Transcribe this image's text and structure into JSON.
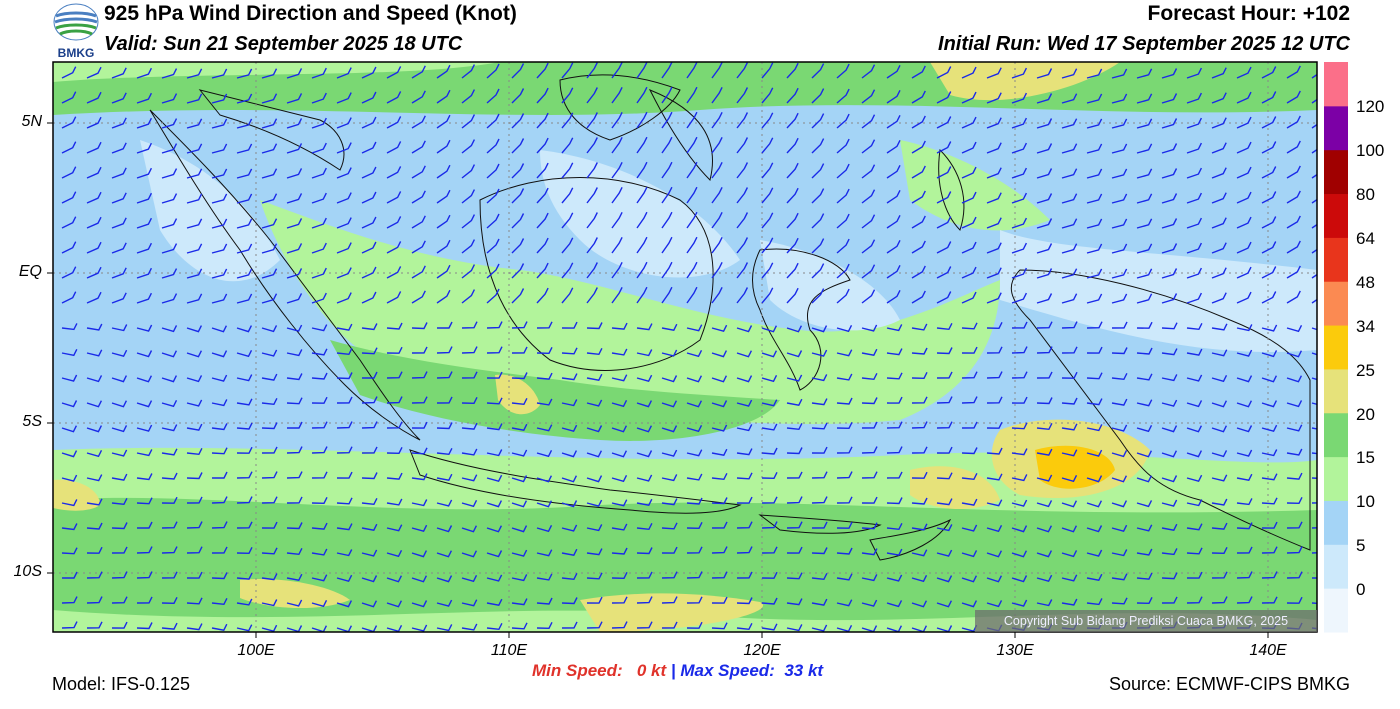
{
  "header": {
    "title": "925 hPa Wind Direction and Speed (Knot)",
    "valid": "Valid: Sun 21 September 2025 18 UTC",
    "forecast_hour": "Forecast Hour: +102",
    "initial_run": "Initial Run: Wed 17 September 2025 12 UTC"
  },
  "logo": {
    "text": "BMKG"
  },
  "map": {
    "lat_labels": [
      "5N",
      "EQ",
      "5S",
      "10S"
    ],
    "lon_labels": [
      "100E",
      "110E",
      "120E",
      "130E",
      "140E"
    ],
    "copyright": "Copyright Sub Bidang Prediksi Cuaca BMKG, 2025"
  },
  "colorbar": {
    "labels": [
      "0",
      "5",
      "10",
      "15",
      "20",
      "25",
      "34",
      "48",
      "64",
      "80",
      "100",
      "120"
    ],
    "colors": [
      "#eef6fd",
      "#cde9fb",
      "#a4d4f6",
      "#b2f49b",
      "#7ad873",
      "#e6e27a",
      "#fbcb0c",
      "#fb8a52",
      "#e8351c",
      "#cc0a0a",
      "#a00000",
      "#7c00a6",
      "#fb6f89"
    ]
  },
  "footer": {
    "model": "Model: IFS-0.125",
    "min_label": "Min Speed:",
    "min_value": "0 kt",
    "separator": "|",
    "max_label": "Max Speed:",
    "max_value": "33 kt",
    "source": "Source: ECMWF-CIPS BMKG"
  }
}
